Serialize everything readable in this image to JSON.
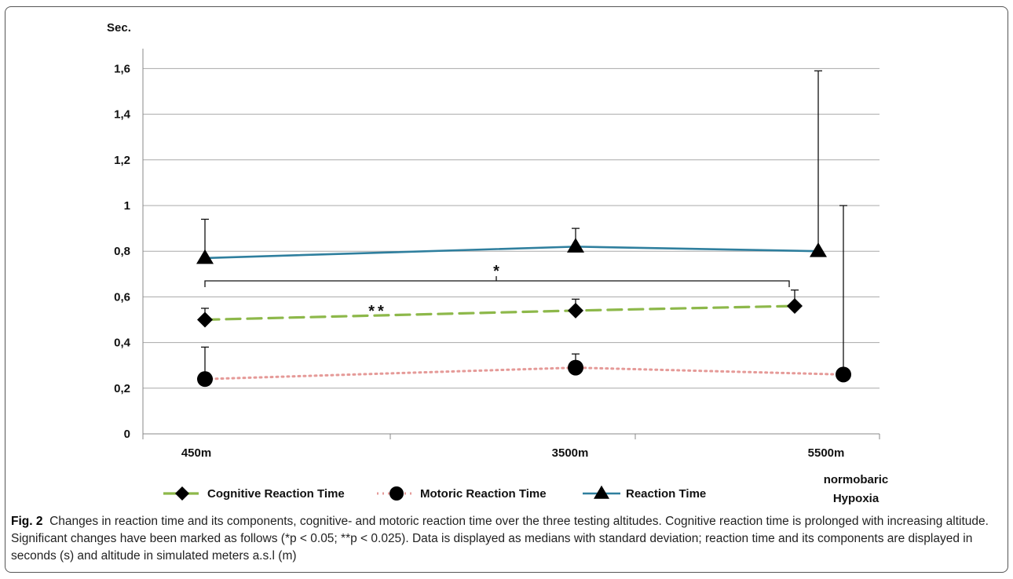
{
  "chart_data": {
    "type": "line",
    "ylabel": "Sec.",
    "categories": [
      "450m",
      "3500m",
      "5500m"
    ],
    "category_extra": "normobaric Hypoxia",
    "ylim": [
      0,
      1.7
    ],
    "yticks": [
      0,
      0.2,
      0.4,
      0.6,
      0.8,
      1,
      1.2,
      1.4,
      1.6
    ],
    "ytick_labels": [
      "0",
      "0,2",
      "0,4",
      "0,6",
      "0,8",
      "1",
      "1,2",
      "1,4",
      "1,6"
    ],
    "grid": true,
    "legend_position": "bottom",
    "series": [
      {
        "name": "Cognitive Reaction Time",
        "marker": "diamond",
        "line": "dashed",
        "color": "#8db84a",
        "values": [
          0.5,
          0.54,
          0.56
        ],
        "error_upper": [
          0.55,
          0.59,
          0.63
        ]
      },
      {
        "name": "Motoric Reaction Time",
        "marker": "circle",
        "line": "dotted",
        "color": "#e59a98",
        "values": [
          0.24,
          0.29,
          0.26
        ],
        "error_upper": [
          0.38,
          0.35,
          1.0
        ]
      },
      {
        "name": "Reaction Time",
        "marker": "triangle",
        "line": "solid",
        "color": "#2f7f9e",
        "values": [
          0.77,
          0.82,
          0.8
        ],
        "error_upper": [
          0.94,
          0.9,
          1.59
        ]
      }
    ],
    "annotations": [
      "*",
      "**"
    ]
  },
  "caption": {
    "label": "Fig. 2",
    "text": "Changes in reaction time and its components, cognitive- and motoric reaction time over the three testing altitudes. Cognitive reaction time is prolonged with increasing altitude. Significant changes have been marked as follows (*p < 0.05; **p < 0.025). Data is displayed as medians with standard deviation; reaction time and its components are displayed in seconds (s) and altitude in simulated meters a.s.l (m)"
  }
}
